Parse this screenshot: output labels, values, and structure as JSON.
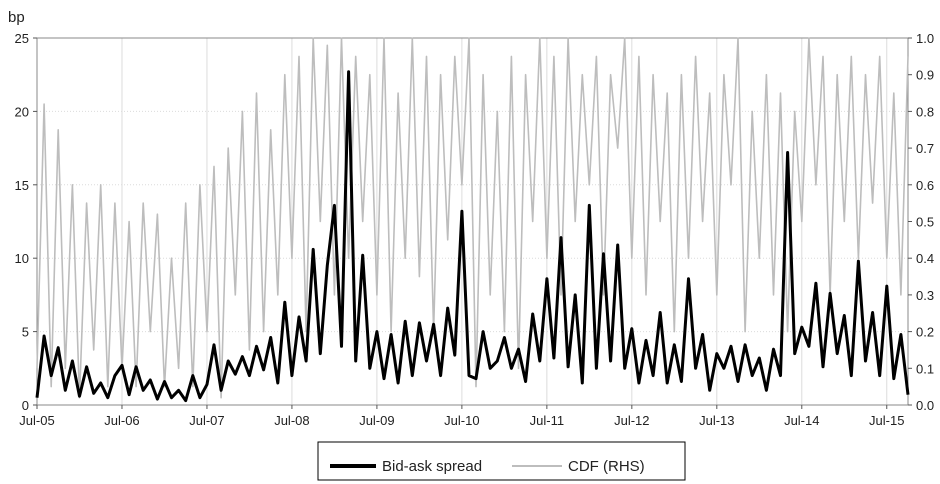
{
  "chart_data": {
    "type": "line",
    "left_axis": {
      "label": "bp",
      "ylim": [
        0,
        25
      ],
      "ticks": [
        "0",
        "5",
        "10",
        "15",
        "20",
        "25"
      ]
    },
    "right_axis": {
      "ylim": [
        0.0,
        1.0
      ],
      "ticks": [
        "0.0",
        "0.1",
        "0.2",
        "0.3",
        "0.4",
        "0.5",
        "0.6",
        "0.7",
        "0.8",
        "0.9",
        "1.0"
      ]
    },
    "x_axis": {
      "range": [
        "2005-07",
        "2015-10"
      ],
      "ticks": [
        "Jul-05",
        "Jul-06",
        "Jul-07",
        "Jul-08",
        "Jul-09",
        "Jul-10",
        "Jul-11",
        "Jul-12",
        "Jul-13",
        "Jul-14",
        "Jul-15"
      ]
    },
    "grid": true,
    "legend_position": "bottom-center",
    "series": [
      {
        "name": "Bid-ask spread",
        "axis": "left",
        "color": "#000000",
        "x": [
          "2005-07",
          "2005-08",
          "2005-09",
          "2005-10",
          "2005-11",
          "2005-12",
          "2006-01",
          "2006-02",
          "2006-03",
          "2006-04",
          "2006-05",
          "2006-06",
          "2006-07",
          "2006-08",
          "2006-09",
          "2006-10",
          "2006-11",
          "2006-12",
          "2007-01",
          "2007-02",
          "2007-03",
          "2007-04",
          "2007-05",
          "2007-06",
          "2007-07",
          "2007-08",
          "2007-09",
          "2007-10",
          "2007-11",
          "2007-12",
          "2008-01",
          "2008-02",
          "2008-03",
          "2008-04",
          "2008-05",
          "2008-06",
          "2008-07",
          "2008-08",
          "2008-09",
          "2008-10",
          "2008-11",
          "2008-12",
          "2009-01",
          "2009-02",
          "2009-03",
          "2009-04",
          "2009-05",
          "2009-06",
          "2009-07",
          "2009-08",
          "2009-09",
          "2009-10",
          "2009-11",
          "2009-12",
          "2010-01",
          "2010-02",
          "2010-03",
          "2010-04",
          "2010-05",
          "2010-06",
          "2010-07",
          "2010-08",
          "2010-09",
          "2010-10",
          "2010-11",
          "2010-12",
          "2011-01",
          "2011-02",
          "2011-03",
          "2011-04",
          "2011-05",
          "2011-06",
          "2011-07",
          "2011-08",
          "2011-09",
          "2011-10",
          "2011-11",
          "2011-12",
          "2012-01",
          "2012-02",
          "2012-03",
          "2012-04",
          "2012-05",
          "2012-06",
          "2012-07",
          "2012-08",
          "2012-09",
          "2012-10",
          "2012-11",
          "2012-12",
          "2013-01",
          "2013-02",
          "2013-03",
          "2013-04",
          "2013-05",
          "2013-06",
          "2013-07",
          "2013-08",
          "2013-09",
          "2013-10",
          "2013-11",
          "2013-12",
          "2014-01",
          "2014-02",
          "2014-03",
          "2014-04",
          "2014-05",
          "2014-06",
          "2014-07",
          "2014-08",
          "2014-09",
          "2014-10",
          "2014-11",
          "2014-12",
          "2015-01",
          "2015-02",
          "2015-03",
          "2015-04",
          "2015-05",
          "2015-06",
          "2015-07",
          "2015-08",
          "2015-09",
          "2015-10"
        ],
        "values": [
          0.5,
          4.7,
          2.0,
          3.9,
          1.0,
          3.0,
          0.6,
          2.6,
          0.8,
          1.5,
          0.5,
          2.0,
          2.7,
          0.7,
          2.6,
          1.0,
          1.7,
          0.4,
          1.6,
          0.5,
          1.0,
          0.3,
          2.0,
          0.5,
          1.4,
          4.1,
          1.0,
          3.0,
          2.1,
          3.3,
          2.0,
          4.0,
          2.4,
          4.6,
          1.5,
          7.0,
          2.0,
          6.0,
          3.0,
          10.6,
          3.5,
          9.5,
          13.6,
          4.0,
          22.7,
          3.0,
          10.2,
          2.5,
          5.0,
          1.8,
          4.8,
          1.5,
          5.7,
          2.0,
          5.6,
          3.0,
          5.5,
          2.0,
          6.6,
          3.4,
          13.2,
          2.0,
          1.8,
          5.0,
          2.5,
          3.0,
          4.6,
          2.5,
          3.8,
          1.6,
          6.2,
          3.0,
          8.6,
          3.2,
          11.4,
          2.6,
          7.5,
          1.5,
          13.6,
          2.5,
          10.3,
          3.0,
          10.9,
          2.5,
          5.2,
          1.5,
          4.4,
          2.0,
          6.3,
          1.5,
          4.1,
          1.6,
          8.6,
          2.5,
          4.8,
          1.0,
          3.5,
          2.5,
          4.0,
          1.6,
          4.1,
          2.0,
          3.2,
          1.0,
          3.8,
          2.0,
          17.2,
          3.5,
          5.3,
          4.0,
          8.3,
          2.6,
          7.6,
          3.5,
          6.1,
          2.0,
          9.8,
          3.0,
          6.3,
          2.0,
          8.1,
          1.8,
          4.8,
          0.7
        ]
      },
      {
        "name": "CDF (RHS)",
        "axis": "right",
        "color": "#bdbdbd",
        "x": [
          "2005-07",
          "2005-08",
          "2005-09",
          "2005-10",
          "2005-11",
          "2005-12",
          "2006-01",
          "2006-02",
          "2006-03",
          "2006-04",
          "2006-05",
          "2006-06",
          "2006-07",
          "2006-08",
          "2006-09",
          "2006-10",
          "2006-11",
          "2006-12",
          "2007-01",
          "2007-02",
          "2007-03",
          "2007-04",
          "2007-05",
          "2007-06",
          "2007-07",
          "2007-08",
          "2007-09",
          "2007-10",
          "2007-11",
          "2007-12",
          "2008-01",
          "2008-02",
          "2008-03",
          "2008-04",
          "2008-05",
          "2008-06",
          "2008-07",
          "2008-08",
          "2008-09",
          "2008-10",
          "2008-11",
          "2008-12",
          "2009-01",
          "2009-02",
          "2009-03",
          "2009-04",
          "2009-05",
          "2009-06",
          "2009-07",
          "2009-08",
          "2009-09",
          "2009-10",
          "2009-11",
          "2009-12",
          "2010-01",
          "2010-02",
          "2010-03",
          "2010-04",
          "2010-05",
          "2010-06",
          "2010-07",
          "2010-08",
          "2010-09",
          "2010-10",
          "2010-11",
          "2010-12",
          "2011-01",
          "2011-02",
          "2011-03",
          "2011-04",
          "2011-05",
          "2011-06",
          "2011-07",
          "2011-08",
          "2011-09",
          "2011-10",
          "2011-11",
          "2011-12",
          "2012-01",
          "2012-02",
          "2012-03",
          "2012-04",
          "2012-05",
          "2012-06",
          "2012-07",
          "2012-08",
          "2012-09",
          "2012-10",
          "2012-11",
          "2012-12",
          "2013-01",
          "2013-02",
          "2013-03",
          "2013-04",
          "2013-05",
          "2013-06",
          "2013-07",
          "2013-08",
          "2013-09",
          "2013-10",
          "2013-11",
          "2013-12",
          "2014-01",
          "2014-02",
          "2014-03",
          "2014-04",
          "2014-05",
          "2014-06",
          "2014-07",
          "2014-08",
          "2014-09",
          "2014-10",
          "2014-11",
          "2014-12",
          "2015-01",
          "2015-02",
          "2015-03",
          "2015-04",
          "2015-05",
          "2015-06",
          "2015-07",
          "2015-08",
          "2015-09",
          "2015-10"
        ],
        "values": [
          0.1,
          0.82,
          0.05,
          0.75,
          0.1,
          0.6,
          0.02,
          0.55,
          0.15,
          0.6,
          0.05,
          0.55,
          0.1,
          0.5,
          0.05,
          0.55,
          0.2,
          0.52,
          0.05,
          0.4,
          0.1,
          0.55,
          0.05,
          0.6,
          0.2,
          0.65,
          0.02,
          0.7,
          0.3,
          0.8,
          0.15,
          0.85,
          0.2,
          0.75,
          0.3,
          0.9,
          0.4,
          0.95,
          0.2,
          1.0,
          0.5,
          0.98,
          0.3,
          1.0,
          0.4,
          0.95,
          0.5,
          0.9,
          0.3,
          1.0,
          0.2,
          0.85,
          0.4,
          1.0,
          0.35,
          0.95,
          0.2,
          0.9,
          0.45,
          0.95,
          0.6,
          1.0,
          0.05,
          0.9,
          0.3,
          0.8,
          0.2,
          0.95,
          0.1,
          0.9,
          0.5,
          1.0,
          0.4,
          0.95,
          0.3,
          1.0,
          0.5,
          0.9,
          0.6,
          0.95,
          0.3,
          0.9,
          0.7,
          1.0,
          0.4,
          0.95,
          0.3,
          0.9,
          0.5,
          0.85,
          0.2,
          0.9,
          0.4,
          0.95,
          0.5,
          0.85,
          0.3,
          0.9,
          0.6,
          1.0,
          0.2,
          0.8,
          0.4,
          0.9,
          0.3,
          0.85,
          0.2,
          0.8,
          0.5,
          1.0,
          0.6,
          0.95,
          0.3,
          0.9,
          0.5,
          0.95,
          0.4,
          0.9,
          0.55,
          0.95,
          0.4,
          0.85,
          0.3,
          0.95
        ]
      }
    ]
  }
}
